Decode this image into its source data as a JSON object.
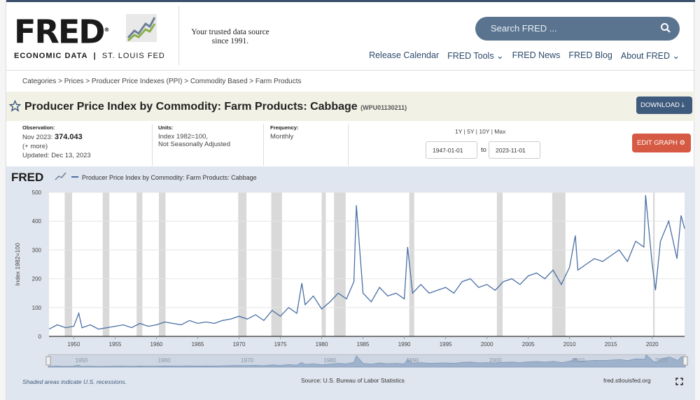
{
  "header": {
    "logo_text": "FRED",
    "logo_registered": "®",
    "logo_sub_a": "ECONOMIC DATA",
    "logo_sub_sep": "|",
    "logo_sub_b": "ST. LOUIS FED",
    "tagline_1": "Your trusted data source",
    "tagline_2": "since 1991.",
    "search_placeholder": "Search FRED ...",
    "nav": [
      "Release Calendar",
      "FRED Tools",
      "FRED News",
      "FRED Blog",
      "About FRED"
    ]
  },
  "breadcrumb": "Categories > Prices > Producer Price Indexes (PPI) > Commodity Based > Farm Products",
  "series": {
    "title": "Producer Price Index by Commodity: Farm Products: Cabbage",
    "code": "(WPU01130211)",
    "download_label": "DOWNLOAD",
    "edit_label": "EDIT GRAPH"
  },
  "meta": {
    "observation_label": "Observation:",
    "observation_date": "Nov 2023:",
    "observation_value": "374.043",
    "more": "(+ more)",
    "updated": "Updated: Dec 13, 2023",
    "units_label": "Units:",
    "units_1": "Index 1982=100,",
    "units_2": "Not Seasonally Adjusted",
    "frequency_label": "Frequency:",
    "frequency": "Monthly"
  },
  "ranges": [
    "1Y",
    "5Y",
    "10Y",
    "Max"
  ],
  "date_start": "1947-01-01",
  "date_to": "to",
  "date_end": "2023-11-01",
  "footer": {
    "recession_note": "Shaded areas indicate U.S. recessions.",
    "source": "Source: U.S. Bureau of Labor Statistics",
    "site": "fred.stlouisfed.org"
  },
  "colors": {
    "line": "#4a6fa5",
    "recession": "#d9d9d9",
    "download": "#3e5a7d",
    "edit": "#d65a43"
  },
  "chart_data": {
    "type": "line",
    "legend": "Producer Price Index by Commodity: Farm Products: Cabbage",
    "ylabel": "Index 1982=100",
    "xlim": [
      1947.0,
      2023.92
    ],
    "ylim": [
      0,
      500
    ],
    "yticks": [
      0,
      100,
      200,
      300,
      400,
      500
    ],
    "xticks": [
      1950,
      1955,
      1960,
      1965,
      1970,
      1975,
      1980,
      1985,
      1990,
      1995,
      2000,
      2005,
      2010,
      2015,
      2020
    ],
    "navigator_ticks": [
      1950,
      1960,
      1970,
      1980,
      1990,
      2000,
      2010,
      2020
    ],
    "recessions": [
      [
        1948.9,
        1949.8
      ],
      [
        1953.5,
        1954.3
      ],
      [
        1957.6,
        1958.3
      ],
      [
        1960.3,
        1961.1
      ],
      [
        1969.9,
        1970.9
      ],
      [
        1973.9,
        1975.2
      ],
      [
        1980.0,
        1980.5
      ],
      [
        1981.5,
        1982.9
      ],
      [
        1990.6,
        1991.2
      ],
      [
        2001.2,
        2001.9
      ],
      [
        2007.9,
        2009.5
      ],
      [
        2020.1,
        2020.3
      ]
    ],
    "x": [
      1947.0,
      1948.0,
      1949.0,
      1950.0,
      1950.6,
      1951.0,
      1952.0,
      1953.0,
      1954.0,
      1955.0,
      1956.0,
      1957.0,
      1958.0,
      1959.0,
      1960.0,
      1961.0,
      1962.0,
      1963.0,
      1964.0,
      1965.0,
      1966.0,
      1967.0,
      1968.0,
      1969.0,
      1970.0,
      1971.0,
      1972.0,
      1973.0,
      1974.0,
      1975.0,
      1976.0,
      1977.0,
      1977.6,
      1978.0,
      1979.0,
      1980.0,
      1981.0,
      1982.0,
      1983.0,
      1983.9,
      1984.2,
      1985.0,
      1986.0,
      1987.0,
      1988.0,
      1989.0,
      1990.0,
      1990.4,
      1991.0,
      1992.0,
      1993.0,
      1994.0,
      1995.0,
      1996.0,
      1997.0,
      1998.0,
      1999.0,
      2000.0,
      2001.0,
      2002.0,
      2003.0,
      2004.0,
      2005.0,
      2006.0,
      2007.0,
      2008.0,
      2009.0,
      2010.0,
      2010.7,
      2011.0,
      2012.0,
      2013.0,
      2014.0,
      2015.0,
      2016.0,
      2017.0,
      2018.0,
      2019.0,
      2019.2,
      2020.0,
      2020.4,
      2021.0,
      2022.0,
      2023.0,
      2023.5,
      2023.92
    ],
    "values": [
      25,
      40,
      30,
      35,
      80,
      30,
      40,
      25,
      30,
      35,
      40,
      30,
      45,
      35,
      40,
      50,
      45,
      40,
      55,
      45,
      50,
      45,
      55,
      60,
      70,
      60,
      75,
      55,
      90,
      70,
      100,
      80,
      185,
      110,
      140,
      95,
      120,
      150,
      130,
      190,
      455,
      150,
      120,
      170,
      140,
      150,
      130,
      310,
      150,
      180,
      150,
      160,
      170,
      150,
      190,
      200,
      170,
      180,
      160,
      190,
      200,
      180,
      210,
      220,
      200,
      230,
      180,
      240,
      350,
      230,
      250,
      270,
      260,
      280,
      300,
      260,
      330,
      310,
      490,
      250,
      160,
      330,
      400,
      270,
      420,
      374
    ]
  }
}
